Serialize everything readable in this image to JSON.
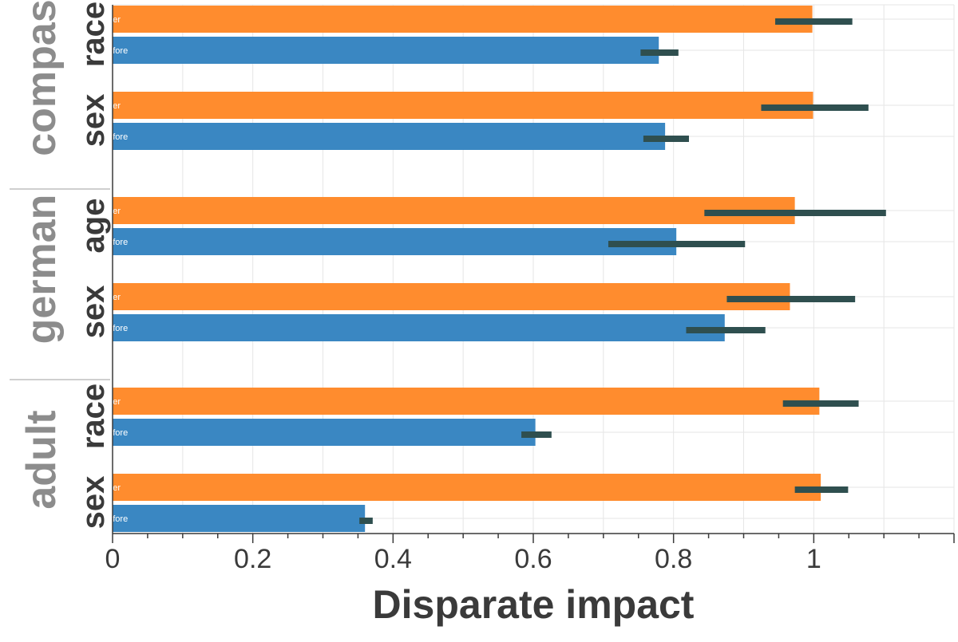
{
  "chart_data": {
    "type": "bar",
    "orientation": "horizontal",
    "xlabel": "Disparate impact",
    "xlim": [
      0,
      1.2
    ],
    "x_ticks": [
      0,
      0.2,
      0.4,
      0.6,
      0.8,
      1
    ],
    "x_tick_labels": [
      "0",
      "0.2",
      "0.4",
      "0.6",
      "0.8",
      "1"
    ],
    "grid": true,
    "series": [
      {
        "name": "after",
        "label": "after",
        "color": "#ff8c2e"
      },
      {
        "name": "before",
        "label": "before",
        "color": "#3a87c2"
      }
    ],
    "error_bar_color": "#2f4f4f",
    "datasets": [
      {
        "name": "compas",
        "attributes": [
          {
            "name": "race",
            "after": {
              "value": 0.998,
              "err_low": 0.945,
              "err_high": 1.055
            },
            "before": {
              "value": 0.779,
              "err_low": 0.753,
              "err_high": 0.807
            }
          },
          {
            "name": "sex",
            "after": {
              "value": 0.999,
              "err_low": 0.925,
              "err_high": 1.078
            },
            "before": {
              "value": 0.788,
              "err_low": 0.757,
              "err_high": 0.822
            }
          }
        ]
      },
      {
        "name": "german",
        "attributes": [
          {
            "name": "age",
            "after": {
              "value": 0.973,
              "err_low": 0.844,
              "err_high": 1.103
            },
            "before": {
              "value": 0.804,
              "err_low": 0.707,
              "err_high": 0.902
            }
          },
          {
            "name": "sex",
            "after": {
              "value": 0.966,
              "err_low": 0.876,
              "err_high": 1.059
            },
            "before": {
              "value": 0.873,
              "err_low": 0.818,
              "err_high": 0.931
            }
          }
        ]
      },
      {
        "name": "adult",
        "attributes": [
          {
            "name": "race",
            "after": {
              "value": 1.008,
              "err_low": 0.956,
              "err_high": 1.064
            },
            "before": {
              "value": 0.603,
              "err_low": 0.583,
              "err_high": 0.626
            }
          },
          {
            "name": "sex",
            "after": {
              "value": 1.01,
              "err_low": 0.973,
              "err_high": 1.049
            },
            "before": {
              "value": 0.36,
              "err_low": 0.352,
              "err_high": 0.371
            }
          }
        ]
      }
    ]
  }
}
